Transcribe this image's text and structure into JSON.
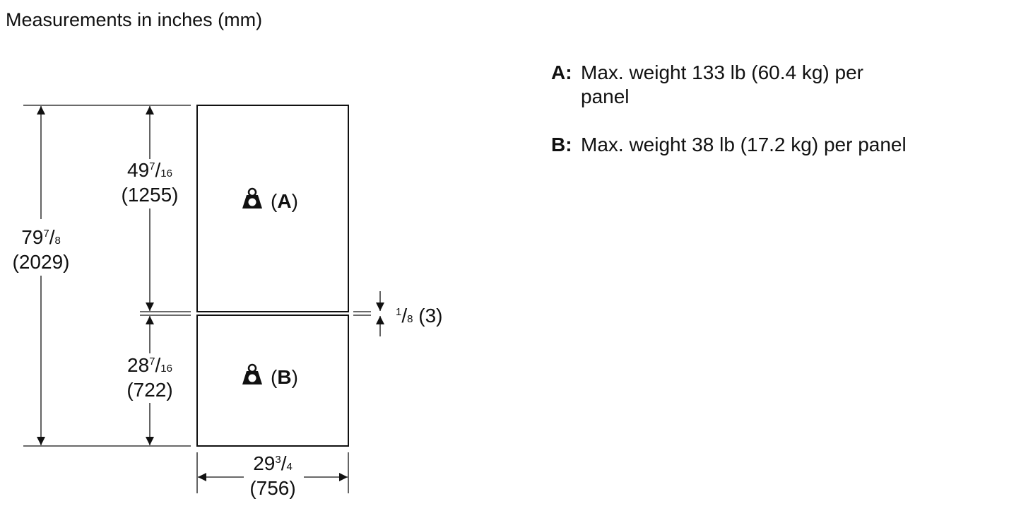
{
  "title": "Measurements in inches (mm)",
  "dimensions": {
    "total_height": {
      "whole": "79",
      "num": "7",
      "den": "8",
      "mm": "(2029)"
    },
    "upper_height": {
      "whole": "49",
      "num": "7",
      "den": "16",
      "mm": "(1255)"
    },
    "lower_height": {
      "whole": "28",
      "num": "7",
      "den": "16",
      "mm": "(722)"
    },
    "width": {
      "whole": "29",
      "num": "3",
      "den": "4",
      "mm": "(756)"
    },
    "gap": {
      "num": "1",
      "den": "8",
      "mm": "(3)"
    }
  },
  "panels": [
    {
      "icon": "weight-icon",
      "label_open": "(",
      "letter": "A",
      "label_close": ")"
    },
    {
      "icon": "weight-icon",
      "label_open": "(",
      "letter": "B",
      "label_close": ")"
    }
  ],
  "legend": [
    {
      "key": "A:",
      "lines": [
        "Max. weight 133 lb (60.4 kg) per",
        "panel"
      ]
    },
    {
      "key": "B:",
      "lines": [
        "Max. weight 38 lb (17.2 kg) per panel"
      ]
    }
  ]
}
